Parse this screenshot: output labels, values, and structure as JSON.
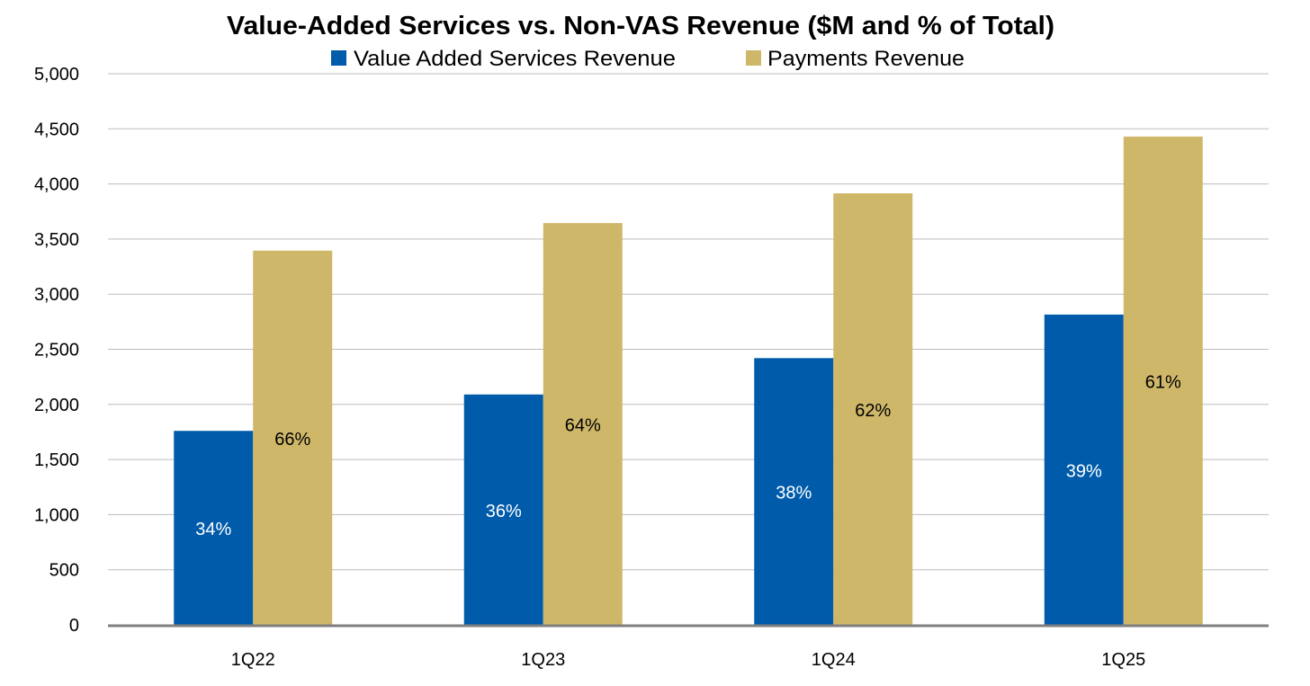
{
  "chart_data": {
    "type": "bar",
    "title": "Value-Added Services vs. Non-VAS Revenue ($M and % of Total)",
    "xlabel": "",
    "ylabel": "",
    "categories": [
      "1Q22",
      "1Q23",
      "1Q24",
      "1Q25"
    ],
    "series": [
      {
        "name": "Value Added Services Revenue",
        "color": "#005BAA",
        "label_color": "#ffffff",
        "values": [
          1760,
          2090,
          2420,
          2815
        ],
        "labels": [
          "34%",
          "36%",
          "38%",
          "39%"
        ]
      },
      {
        "name": "Payments Revenue",
        "color": "#CFB76A",
        "label_color": "#000000",
        "values": [
          3395,
          3645,
          3915,
          4430
        ],
        "labels": [
          "66%",
          "64%",
          "62%",
          "61%"
        ]
      }
    ],
    "ylim": [
      0,
      5000
    ],
    "yticks": [
      "0",
      "500",
      "1,000",
      "1,500",
      "2,000",
      "2,500",
      "3,000",
      "3,500",
      "4,000",
      "4,500",
      "5,000"
    ],
    "ytick_values": [
      0,
      500,
      1000,
      1500,
      2000,
      2500,
      3000,
      3500,
      4000,
      4500,
      5000
    ],
    "grid": true,
    "legend_position": "top-center"
  }
}
